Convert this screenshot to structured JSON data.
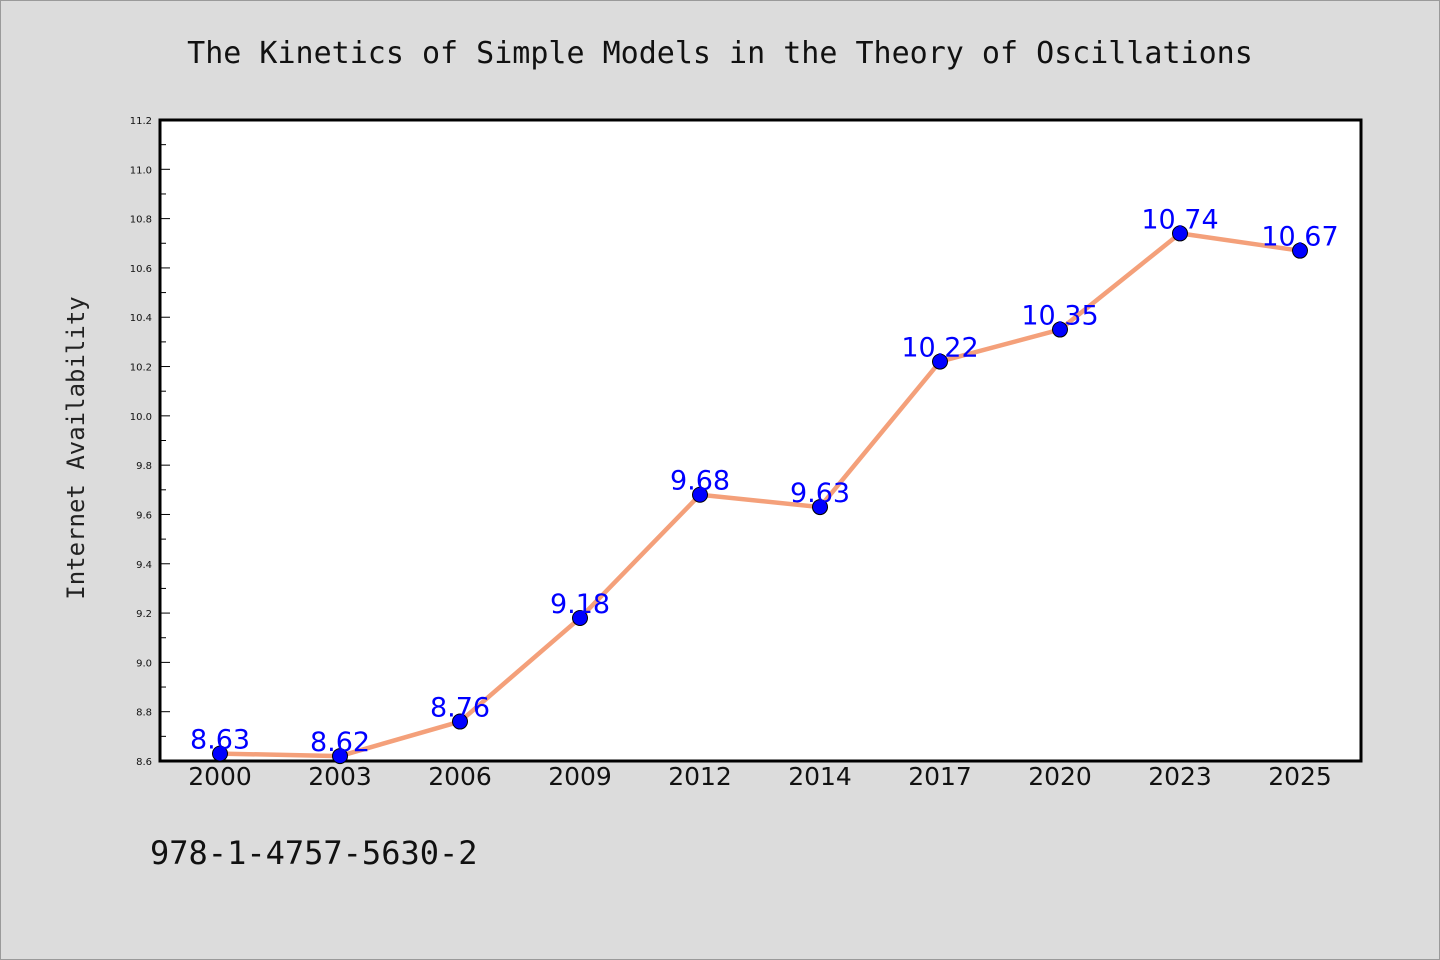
{
  "page": {
    "footer_code": "978-1-4757-5630-2"
  },
  "chart_data": {
    "type": "line",
    "title": "The Kinetics of Simple Models in the Theory of Oscillations",
    "xlabel": "",
    "ylabel": "Internet Availability",
    "categories": [
      "2000",
      "2003",
      "2006",
      "2009",
      "2012",
      "2014",
      "2017",
      "2020",
      "2023",
      "2025"
    ],
    "series": [
      {
        "values": [
          8.63,
          8.62,
          8.76,
          9.18,
          9.68,
          9.63,
          10.22,
          10.35,
          10.74,
          10.67
        ],
        "data_labels": [
          "8.63",
          "8.62",
          "8.76",
          "9.18",
          "9.68",
          "9.63",
          "10.22",
          "10.35",
          "10.74",
          "10.67"
        ],
        "line_color": "#f4a07a",
        "marker_color": "#0000ff"
      }
    ],
    "ylim": [
      8.6,
      11.2
    ],
    "yticks": [
      "8.6",
      "8.8",
      "9.0",
      "9.2",
      "9.4",
      "9.6",
      "9.8",
      "10.0",
      "10.2",
      "10.4",
      "10.6",
      "10.8",
      "11.0",
      "11.2"
    ],
    "grid": false,
    "legend": "none"
  }
}
